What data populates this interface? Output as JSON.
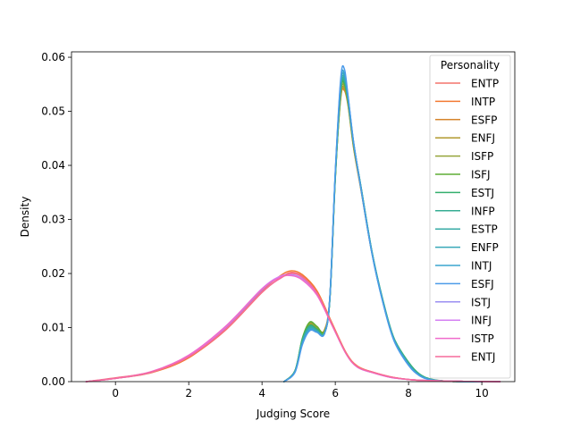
{
  "chart_data": {
    "type": "line",
    "title": "",
    "xlabel": "Judging Score",
    "ylabel": "Density",
    "xlim": [
      -1.2,
      10.9
    ],
    "ylim": [
      0,
      0.061
    ],
    "xticks": [
      0,
      2,
      4,
      6,
      8,
      10
    ],
    "yticks": [
      0.0,
      0.01,
      0.02,
      0.03,
      0.04,
      0.05,
      0.06
    ],
    "ytick_labels": [
      "0.00",
      "0.01",
      "0.02",
      "0.03",
      "0.04",
      "0.05",
      "0.06"
    ],
    "legend": {
      "title": "Personality",
      "placement": "top-right"
    },
    "series": [
      {
        "name": "ENTP",
        "color": "#f4736b",
        "group": "broad",
        "x": [
          -0.8,
          0.0,
          1.0,
          2.0,
          3.0,
          4.0,
          4.5,
          4.8,
          5.1,
          5.5,
          5.9,
          6.3,
          6.6,
          7.0,
          7.5,
          8.0,
          8.5,
          9.0,
          9.5,
          10.0,
          10.5
        ],
        "y": [
          0.0,
          0.0007,
          0.0018,
          0.0045,
          0.0095,
          0.0165,
          0.0192,
          0.0202,
          0.0195,
          0.0165,
          0.0108,
          0.0052,
          0.0028,
          0.0018,
          0.0009,
          0.0004,
          0.0002,
          0.0001,
          5e-05,
          2e-05,
          0.0
        ]
      },
      {
        "name": "INTP",
        "color": "#f37a33",
        "group": "broad",
        "x": [
          -0.8,
          0.0,
          1.0,
          2.0,
          3.0,
          4.0,
          4.5,
          4.8,
          5.1,
          5.5,
          5.9,
          6.3,
          6.6,
          7.0,
          7.5,
          8.0,
          8.5,
          9.0,
          9.5,
          10.0,
          10.5
        ],
        "y": [
          0.0,
          0.0006,
          0.0017,
          0.0044,
          0.0098,
          0.0168,
          0.0196,
          0.0205,
          0.0198,
          0.0168,
          0.011,
          0.0053,
          0.0029,
          0.0018,
          0.0009,
          0.0004,
          0.0002,
          0.0001,
          5e-05,
          2e-05,
          0.0
        ]
      },
      {
        "name": "ESFP",
        "color": "#d6852c",
        "group": "sharp",
        "x": [
          4.6,
          4.9,
          5.1,
          5.3,
          5.5,
          5.7,
          5.85,
          6.0,
          6.15,
          6.25,
          6.35,
          6.5,
          6.7,
          7.0,
          7.3,
          7.6,
          8.0,
          8.3,
          8.6,
          9.0,
          9.5,
          10.0
        ],
        "y": [
          0.0,
          0.002,
          0.0075,
          0.0105,
          0.0098,
          0.0095,
          0.0155,
          0.038,
          0.0525,
          0.0538,
          0.051,
          0.0432,
          0.0355,
          0.0238,
          0.0148,
          0.0078,
          0.0032,
          0.0012,
          0.0004,
          0.0001,
          0.0,
          0.0
        ]
      },
      {
        "name": "ENFJ",
        "color": "#b29a2e",
        "group": "sharp",
        "x": [
          4.6,
          4.9,
          5.1,
          5.3,
          5.5,
          5.7,
          5.85,
          6.0,
          6.15,
          6.25,
          6.35,
          6.5,
          6.7,
          7.0,
          7.3,
          7.6,
          8.0,
          8.3,
          8.6,
          9.0,
          9.5,
          10.0
        ],
        "y": [
          0.0,
          0.002,
          0.0076,
          0.0106,
          0.0099,
          0.0094,
          0.0153,
          0.0378,
          0.0528,
          0.0542,
          0.0512,
          0.0434,
          0.0356,
          0.0238,
          0.0148,
          0.0078,
          0.0033,
          0.0012,
          0.0004,
          0.0001,
          0.0,
          0.0
        ]
      },
      {
        "name": "ISFP",
        "color": "#95a43a",
        "group": "sharp",
        "x": [
          4.6,
          4.9,
          5.1,
          5.3,
          5.5,
          5.7,
          5.85,
          6.0,
          6.15,
          6.25,
          6.35,
          6.5,
          6.7,
          7.0,
          7.3,
          7.6,
          8.0,
          8.3,
          8.6,
          9.0,
          9.5,
          10.0
        ],
        "y": [
          0.0,
          0.002,
          0.0078,
          0.0108,
          0.01,
          0.0093,
          0.0152,
          0.0376,
          0.0532,
          0.0546,
          0.0514,
          0.0436,
          0.0358,
          0.0239,
          0.0149,
          0.0079,
          0.0034,
          0.0013,
          0.0004,
          0.0001,
          0.0,
          0.0
        ]
      },
      {
        "name": "ISFJ",
        "color": "#5fae35",
        "group": "sharp",
        "x": [
          4.6,
          4.9,
          5.1,
          5.3,
          5.5,
          5.7,
          5.85,
          6.0,
          6.15,
          6.25,
          6.35,
          6.5,
          6.7,
          7.0,
          7.3,
          7.6,
          8.0,
          8.3,
          8.6,
          9.0,
          9.5,
          10.0
        ],
        "y": [
          0.0,
          0.002,
          0.008,
          0.011,
          0.0102,
          0.0092,
          0.015,
          0.0374,
          0.0536,
          0.055,
          0.0516,
          0.0438,
          0.036,
          0.024,
          0.015,
          0.008,
          0.0035,
          0.0013,
          0.0004,
          0.0001,
          0.0,
          0.0
        ]
      },
      {
        "name": "ESTJ",
        "color": "#34af6e",
        "group": "sharp",
        "x": [
          4.6,
          4.9,
          5.1,
          5.3,
          5.5,
          5.7,
          5.85,
          6.0,
          6.15,
          6.25,
          6.35,
          6.5,
          6.7,
          7.0,
          7.3,
          7.6,
          8.0,
          8.3,
          8.6,
          9.0,
          9.5,
          10.0
        ],
        "y": [
          0.0,
          0.002,
          0.0078,
          0.0104,
          0.0097,
          0.009,
          0.0151,
          0.0378,
          0.054,
          0.0553,
          0.0518,
          0.0439,
          0.0361,
          0.0241,
          0.0151,
          0.0081,
          0.0036,
          0.0014,
          0.0005,
          0.0001,
          0.0,
          0.0
        ]
      },
      {
        "name": "INFP",
        "color": "#36ad93",
        "group": "sharp",
        "x": [
          4.6,
          4.9,
          5.1,
          5.3,
          5.5,
          5.7,
          5.85,
          6.0,
          6.15,
          6.25,
          6.35,
          6.5,
          6.7,
          7.0,
          7.3,
          7.6,
          8.0,
          8.3,
          8.6,
          9.0,
          9.5,
          10.0
        ],
        "y": [
          0.0,
          0.002,
          0.0076,
          0.0102,
          0.0095,
          0.0089,
          0.0151,
          0.038,
          0.0544,
          0.0556,
          0.052,
          0.044,
          0.0361,
          0.0241,
          0.015,
          0.008,
          0.0034,
          0.0013,
          0.0004,
          0.0001,
          0.0,
          0.0
        ]
      },
      {
        "name": "ESTP",
        "color": "#37aba6",
        "group": "sharp",
        "x": [
          4.6,
          4.9,
          5.1,
          5.3,
          5.5,
          5.7,
          5.85,
          6.0,
          6.15,
          6.25,
          6.35,
          6.5,
          6.7,
          7.0,
          7.3,
          7.6,
          8.0,
          8.3,
          8.6,
          9.0,
          9.5,
          10.0
        ],
        "y": [
          0.0,
          0.0019,
          0.0074,
          0.01,
          0.0094,
          0.0088,
          0.0152,
          0.0382,
          0.0548,
          0.056,
          0.0522,
          0.0441,
          0.036,
          0.024,
          0.0149,
          0.0079,
          0.0033,
          0.0012,
          0.0004,
          0.0001,
          0.0,
          0.0
        ]
      },
      {
        "name": "ENFP",
        "color": "#38a9b9",
        "group": "sharp",
        "x": [
          4.6,
          4.9,
          5.1,
          5.3,
          5.5,
          5.7,
          5.85,
          6.0,
          6.15,
          6.25,
          6.35,
          6.5,
          6.7,
          7.0,
          7.3,
          7.6,
          8.0,
          8.3,
          8.6,
          9.0,
          9.5,
          10.0
        ],
        "y": [
          0.0,
          0.0018,
          0.0072,
          0.0098,
          0.0093,
          0.0088,
          0.0153,
          0.0384,
          0.0552,
          0.0565,
          0.0524,
          0.0442,
          0.0359,
          0.0239,
          0.0148,
          0.0078,
          0.0032,
          0.0012,
          0.0004,
          0.0001,
          0.0,
          0.0
        ]
      },
      {
        "name": "INTJ",
        "color": "#3aa5cf",
        "group": "sharp",
        "x": [
          4.6,
          4.9,
          5.1,
          5.3,
          5.5,
          5.7,
          5.85,
          6.0,
          6.15,
          6.25,
          6.35,
          6.5,
          6.7,
          7.0,
          7.3,
          7.6,
          8.0,
          8.3,
          8.6,
          9.0,
          9.5,
          10.0
        ],
        "y": [
          0.0,
          0.0018,
          0.007,
          0.0096,
          0.0092,
          0.0088,
          0.0154,
          0.0386,
          0.0556,
          0.057,
          0.0526,
          0.0442,
          0.0358,
          0.0238,
          0.0147,
          0.0077,
          0.0031,
          0.0011,
          0.0004,
          0.0001,
          0.0,
          0.0
        ]
      },
      {
        "name": "ESFJ",
        "color": "#4c9be9",
        "group": "sharp",
        "x": [
          4.6,
          4.9,
          5.1,
          5.3,
          5.5,
          5.7,
          5.85,
          6.0,
          6.15,
          6.25,
          6.35,
          6.5,
          6.7,
          7.0,
          7.3,
          7.6,
          8.0,
          8.3,
          8.6,
          9.0,
          9.5,
          10.0
        ],
        "y": [
          0.0,
          0.0017,
          0.0068,
          0.0094,
          0.0091,
          0.0088,
          0.0155,
          0.0388,
          0.0562,
          0.0578,
          0.0528,
          0.0443,
          0.0357,
          0.0237,
          0.0146,
          0.0076,
          0.003,
          0.0011,
          0.0003,
          0.0001,
          0.0,
          0.0
        ]
      },
      {
        "name": "ISTJ",
        "color": "#9b8ff2",
        "group": "broad",
        "x": [
          -0.8,
          0.0,
          1.0,
          2.0,
          3.0,
          4.0,
          4.5,
          4.8,
          5.1,
          5.5,
          5.9,
          6.3,
          6.6,
          7.0,
          7.5,
          8.0,
          8.5,
          9.0,
          9.5,
          10.0,
          10.5
        ],
        "y": [
          0.0,
          0.0006,
          0.0018,
          0.0047,
          0.01,
          0.017,
          0.0194,
          0.0198,
          0.019,
          0.0162,
          0.0107,
          0.0051,
          0.0027,
          0.0017,
          0.0008,
          0.0004,
          0.0002,
          0.0001,
          5e-05,
          2e-05,
          0.0
        ]
      },
      {
        "name": "INFJ",
        "color": "#d47ff3",
        "group": "broad",
        "x": [
          -0.8,
          0.0,
          1.0,
          2.0,
          3.0,
          4.0,
          4.5,
          4.8,
          5.1,
          5.5,
          5.9,
          6.3,
          6.6,
          7.0,
          7.5,
          8.0,
          8.5,
          9.0,
          9.5,
          10.0,
          10.5
        ],
        "y": [
          0.0,
          0.0006,
          0.0018,
          0.0048,
          0.0101,
          0.0172,
          0.0195,
          0.0197,
          0.0189,
          0.0161,
          0.0106,
          0.0051,
          0.0027,
          0.0017,
          0.0008,
          0.0004,
          0.0002,
          0.0001,
          5e-05,
          2e-05,
          0.0
        ]
      },
      {
        "name": "ISTP",
        "color": "#ef6bcc",
        "group": "broad",
        "x": [
          -0.8,
          0.0,
          1.0,
          2.0,
          3.0,
          4.0,
          4.5,
          4.8,
          5.1,
          5.5,
          5.9,
          6.3,
          6.6,
          7.0,
          7.5,
          8.0,
          8.5,
          9.0,
          9.5,
          10.0,
          10.5
        ],
        "y": [
          0.0,
          0.0006,
          0.0019,
          0.0049,
          0.0102,
          0.0171,
          0.0193,
          0.0196,
          0.0188,
          0.016,
          0.0106,
          0.0051,
          0.0027,
          0.0017,
          0.0008,
          0.0004,
          0.0002,
          0.0001,
          5e-05,
          2e-05,
          0.0
        ]
      },
      {
        "name": "ENTJ",
        "color": "#f66b9c",
        "group": "broad",
        "x": [
          -0.8,
          0.0,
          1.0,
          2.0,
          3.0,
          4.0,
          4.5,
          4.8,
          5.1,
          5.5,
          5.9,
          6.3,
          6.6,
          7.0,
          7.5,
          8.0,
          8.5,
          9.0,
          9.5,
          10.0,
          10.5
        ],
        "y": [
          0.0,
          0.0006,
          0.0018,
          0.0046,
          0.0097,
          0.0166,
          0.0191,
          0.02,
          0.0193,
          0.0164,
          0.0108,
          0.0052,
          0.0028,
          0.0018,
          0.0009,
          0.0004,
          0.0002,
          0.0001,
          5e-05,
          2e-05,
          0.0
        ]
      }
    ]
  }
}
